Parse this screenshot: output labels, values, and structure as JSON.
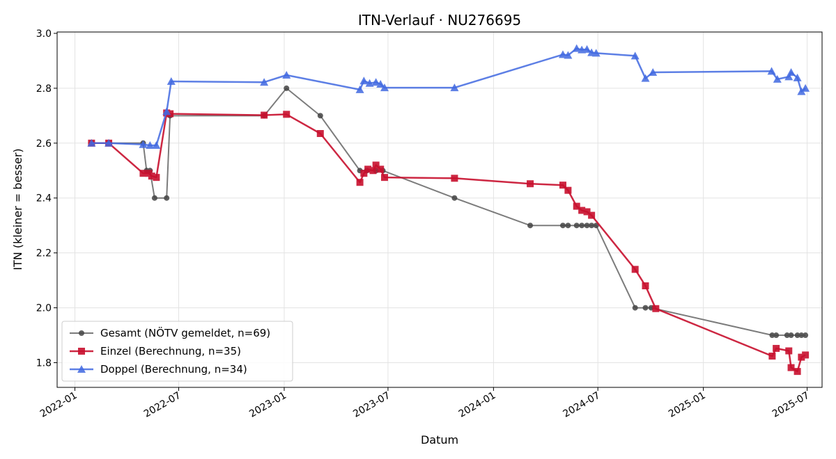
{
  "chart_data": {
    "type": "line",
    "title": "ITN-Verlauf · NU276695",
    "xlabel": "Datum",
    "ylabel": "ITN  (kleiner = besser)",
    "xlim": [
      "2021-12-01",
      "2025-07-27"
    ],
    "ylim": [
      1.71,
      3.005
    ],
    "x_ticks": [
      "2022-01",
      "2022-07",
      "2023-01",
      "2023-07",
      "2024-01",
      "2024-07",
      "2025-01",
      "2025-07"
    ],
    "y_ticks": [
      "1.8",
      "2.0",
      "2.2",
      "2.4",
      "2.6",
      "2.8",
      "3.0"
    ],
    "grid": true,
    "legend_position": "lower-left",
    "series": [
      {
        "name": "Gesamt (NÖTV gemeldet, n=69)",
        "color": "#444444",
        "marker": "circle",
        "points": [
          [
            "2022-01-30",
            2.6
          ],
          [
            "2022-03-01",
            2.6
          ],
          [
            "2022-04-30",
            2.6
          ],
          [
            "2022-05-06",
            2.5
          ],
          [
            "2022-05-12",
            2.5
          ],
          [
            "2022-05-20",
            2.4
          ],
          [
            "2022-06-10",
            2.4
          ],
          [
            "2022-06-16",
            2.7
          ],
          [
            "2022-11-27",
            2.7
          ],
          [
            "2023-01-05",
            2.8
          ],
          [
            "2023-03-05",
            2.7
          ],
          [
            "2023-05-13",
            2.5
          ],
          [
            "2023-05-25",
            2.5
          ],
          [
            "2023-06-10",
            2.5
          ],
          [
            "2023-06-22",
            2.5
          ],
          [
            "2023-10-25",
            2.4
          ],
          [
            "2024-03-05",
            2.3
          ],
          [
            "2024-05-01",
            2.3
          ],
          [
            "2024-05-10",
            2.3
          ],
          [
            "2024-05-25",
            2.3
          ],
          [
            "2024-06-03",
            2.3
          ],
          [
            "2024-06-12",
            2.3
          ],
          [
            "2024-06-20",
            2.3
          ],
          [
            "2024-06-28",
            2.3
          ],
          [
            "2024-09-04",
            2.0
          ],
          [
            "2024-09-22",
            2.0
          ],
          [
            "2024-10-02",
            2.0
          ],
          [
            "2025-05-01",
            1.9
          ],
          [
            "2025-05-08",
            1.9
          ],
          [
            "2025-05-27",
            1.9
          ],
          [
            "2025-06-03",
            1.9
          ],
          [
            "2025-06-14",
            1.9
          ],
          [
            "2025-06-21",
            1.9
          ],
          [
            "2025-06-28",
            1.9
          ]
        ]
      },
      {
        "name": "Einzel (Berechnung, n=35)",
        "color": "#c8102e",
        "marker": "square",
        "points": [
          [
            "2022-01-30",
            2.6
          ],
          [
            "2022-03-01",
            2.6
          ],
          [
            "2022-04-30",
            2.49
          ],
          [
            "2022-05-10",
            2.49
          ],
          [
            "2022-05-15",
            2.48
          ],
          [
            "2022-05-23",
            2.475
          ],
          [
            "2022-06-10",
            2.71
          ],
          [
            "2022-06-16",
            2.707
          ],
          [
            "2022-11-27",
            2.702
          ],
          [
            "2023-01-05",
            2.705
          ],
          [
            "2023-03-05",
            2.635
          ],
          [
            "2023-05-13",
            2.457
          ],
          [
            "2023-05-20",
            2.49
          ],
          [
            "2023-05-27",
            2.505
          ],
          [
            "2023-06-05",
            2.5
          ],
          [
            "2023-06-10",
            2.52
          ],
          [
            "2023-06-18",
            2.505
          ],
          [
            "2023-06-25",
            2.475
          ],
          [
            "2023-10-25",
            2.472
          ],
          [
            "2024-03-05",
            2.452
          ],
          [
            "2024-05-01",
            2.447
          ],
          [
            "2024-05-10",
            2.428
          ],
          [
            "2024-05-25",
            2.37
          ],
          [
            "2024-06-03",
            2.355
          ],
          [
            "2024-06-12",
            2.35
          ],
          [
            "2024-06-20",
            2.337
          ],
          [
            "2024-09-04",
            2.14
          ],
          [
            "2024-09-22",
            2.08
          ],
          [
            "2024-10-10",
            1.997
          ],
          [
            "2025-05-01",
            1.824
          ],
          [
            "2025-05-08",
            1.852
          ],
          [
            "2025-05-30",
            1.843
          ],
          [
            "2025-06-03",
            1.782
          ],
          [
            "2025-06-14",
            1.768
          ],
          [
            "2025-06-21",
            1.82
          ],
          [
            "2025-06-28",
            1.828
          ]
        ]
      },
      {
        "name": "Doppel (Berechnung, n=34)",
        "color": "#4169e1",
        "marker": "triangle",
        "points": [
          [
            "2022-01-30",
            2.6
          ],
          [
            "2022-03-01",
            2.6
          ],
          [
            "2022-04-30",
            2.595
          ],
          [
            "2022-05-12",
            2.592
          ],
          [
            "2022-05-23",
            2.592
          ],
          [
            "2022-06-10",
            2.715
          ],
          [
            "2022-06-18",
            2.825
          ],
          [
            "2022-11-27",
            2.822
          ],
          [
            "2023-01-05",
            2.848
          ],
          [
            "2023-05-13",
            2.795
          ],
          [
            "2023-05-20",
            2.827
          ],
          [
            "2023-05-30",
            2.818
          ],
          [
            "2023-06-10",
            2.822
          ],
          [
            "2023-06-18",
            2.815
          ],
          [
            "2023-06-25",
            2.802
          ],
          [
            "2023-10-25",
            2.802
          ],
          [
            "2024-05-01",
            2.923
          ],
          [
            "2024-05-10",
            2.92
          ],
          [
            "2024-05-25",
            2.945
          ],
          [
            "2024-06-03",
            2.94
          ],
          [
            "2024-06-12",
            2.942
          ],
          [
            "2024-06-20",
            2.93
          ],
          [
            "2024-06-28",
            2.928
          ],
          [
            "2024-09-04",
            2.918
          ],
          [
            "2024-09-22",
            2.836
          ],
          [
            "2024-10-05",
            2.858
          ],
          [
            "2025-04-30",
            2.862
          ],
          [
            "2025-05-10",
            2.833
          ],
          [
            "2025-05-30",
            2.842
          ],
          [
            "2025-06-03",
            2.858
          ],
          [
            "2025-06-14",
            2.838
          ],
          [
            "2025-06-21",
            2.788
          ],
          [
            "2025-06-28",
            2.8
          ]
        ]
      }
    ]
  }
}
